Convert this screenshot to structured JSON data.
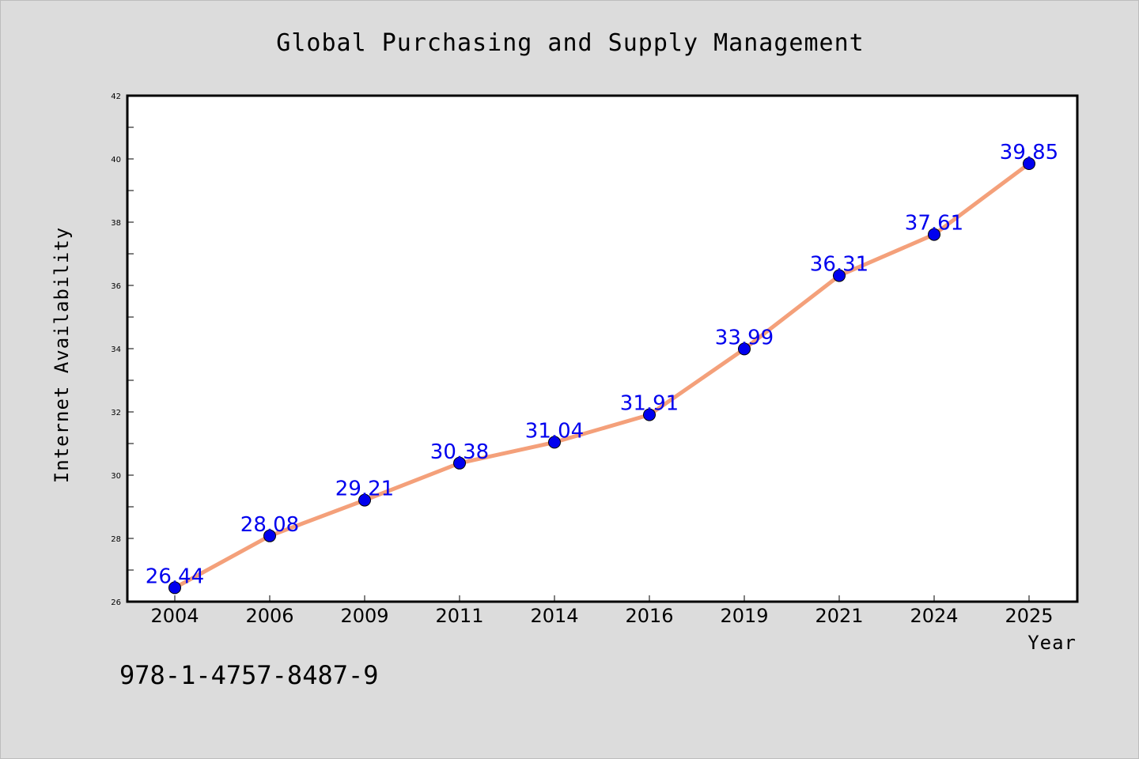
{
  "chart_data": {
    "type": "line",
    "title": "Global Purchasing and Supply Management",
    "xlabel": "Year",
    "ylabel": "Internet Availability",
    "categories": [
      "2004",
      "2006",
      "2009",
      "2011",
      "2014",
      "2016",
      "2019",
      "2021",
      "2024",
      "2025"
    ],
    "values": [
      26.44,
      28.08,
      29.21,
      30.38,
      31.04,
      31.91,
      33.99,
      36.31,
      37.61,
      39.85
    ],
    "data_labels": [
      "26.44",
      "28.08",
      "29.21",
      "30.38",
      "31.04",
      "31.91",
      "33.99",
      "36.31",
      "37.61",
      "39.85"
    ],
    "ylim": [
      26,
      42
    ],
    "yticks": [
      26,
      28,
      30,
      32,
      34,
      36,
      38,
      40,
      42
    ],
    "grid": false,
    "legend": "none",
    "colors": {
      "line": "#f4a07a",
      "marker": "#0000ee",
      "label": "#0000ee",
      "background": "#dcdcdc",
      "plot_background": "#ffffff"
    }
  },
  "footer": {
    "isbn": "978-1-4757-8487-9"
  }
}
